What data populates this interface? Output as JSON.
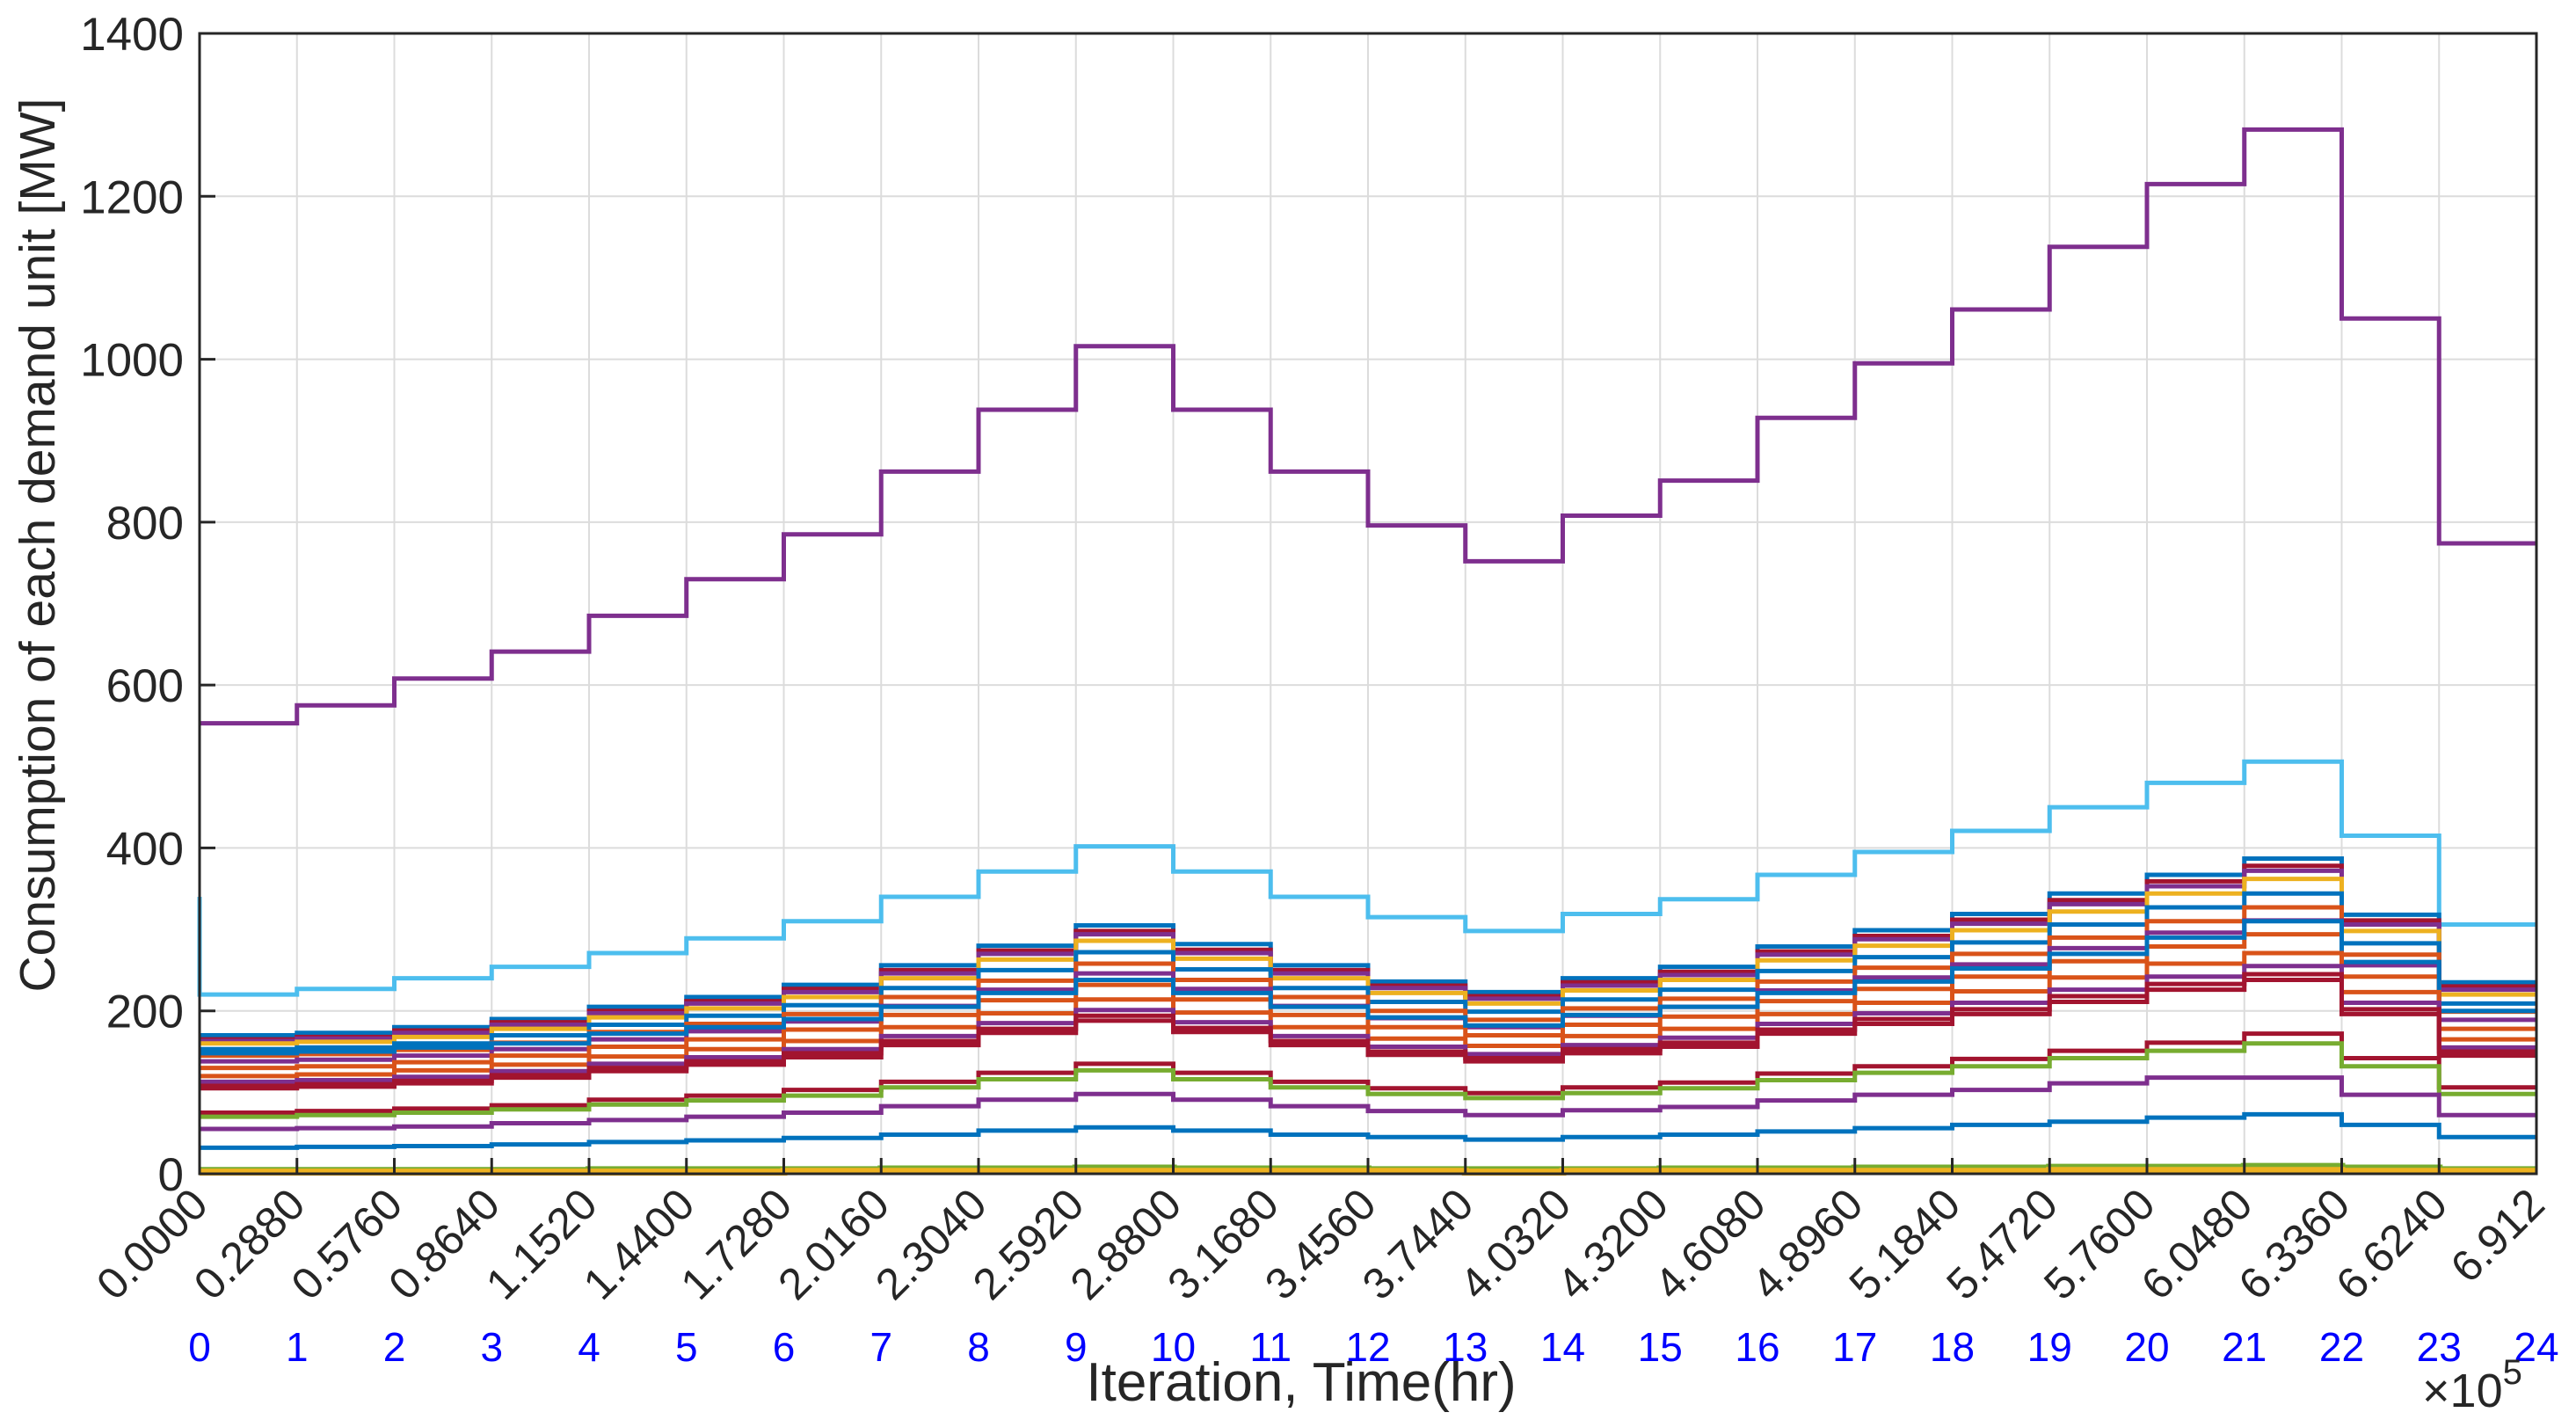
{
  "chart_data": {
    "type": "line",
    "xlabel": "Iteration, Time(hr)",
    "ylabel": "Consumption of each demand unit [MW]",
    "ylim": [
      0,
      1400
    ],
    "yticks": [
      0,
      200,
      400,
      600,
      800,
      1000,
      1200,
      1400
    ],
    "xlim": [
      0,
      24
    ],
    "x_exponent_label": "×10",
    "x_exponent_power": "5",
    "iteration_tick_labels": [
      "0.0000",
      "0.2880",
      "0.5760",
      "0.8640",
      "1.1520",
      "1.4400",
      "1.7280",
      "2.0160",
      "2.3040",
      "2.5920",
      "2.8800",
      "3.1680",
      "3.4560",
      "3.7440",
      "4.0320",
      "4.3200",
      "4.6080",
      "4.8960",
      "5.1840",
      "5.4720",
      "5.7600",
      "6.0480",
      "6.3360",
      "6.6240",
      "6.912"
    ],
    "hour_tick_labels": [
      "0",
      "1",
      "2",
      "3",
      "4",
      "5",
      "6",
      "7",
      "8",
      "9",
      "10",
      "11",
      "12",
      "13",
      "14",
      "15",
      "16",
      "17",
      "18",
      "19",
      "20",
      "21",
      "22",
      "23",
      "24"
    ],
    "hour_tick_color": "#0000ff",
    "grid": true,
    "step": true,
    "series": [
      {
        "color": "#7E2F8E",
        "values": [
          553,
          575,
          608,
          641,
          685,
          730,
          785,
          862,
          938,
          1016,
          938,
          862,
          796,
          752,
          808,
          851,
          928,
          995,
          1061,
          1138,
          1215,
          1282,
          1050,
          774
        ]
      },
      {
        "color": "#4DBEEE",
        "start": 340,
        "values": [
          220,
          227,
          240,
          254,
          271,
          289,
          310,
          340,
          371,
          402,
          371,
          340,
          315,
          298,
          319,
          337,
          367,
          395,
          421,
          450,
          480,
          506,
          415,
          306
        ]
      },
      {
        "color": "#0072BD",
        "values": [
          170,
          173,
          180,
          190,
          205,
          217,
          232,
          256,
          280,
          305,
          282,
          256,
          236,
          223,
          240,
          254,
          279,
          299,
          319,
          344,
          367,
          387,
          318,
          235
        ]
      },
      {
        "color": "#A2142F",
        "values": [
          165,
          168,
          176,
          186,
          200,
          212,
          227,
          250,
          274,
          298,
          275,
          250,
          231,
          218,
          235,
          248,
          273,
          292,
          312,
          336,
          359,
          378,
          311,
          230
        ]
      },
      {
        "color": "#7E2F8E",
        "values": [
          163,
          166,
          173,
          183,
          197,
          209,
          223,
          246,
          270,
          294,
          271,
          246,
          228,
          215,
          231,
          244,
          269,
          288,
          307,
          331,
          353,
          372,
          306,
          226
        ]
      },
      {
        "color": "#EDB120",
        "values": [
          160,
          162,
          168,
          178,
          192,
          203,
          217,
          240,
          263,
          286,
          264,
          240,
          222,
          209,
          225,
          238,
          262,
          280,
          299,
          322,
          344,
          362,
          298,
          220
        ]
      },
      {
        "color": "#0072BD",
        "values": [
          153,
          155,
          160,
          170,
          183,
          194,
          207,
          228,
          250,
          272,
          251,
          228,
          211,
          199,
          214,
          226,
          249,
          266,
          284,
          306,
          327,
          344,
          283,
          209
        ]
      },
      {
        "color": "#D95319",
        "values": [
          145,
          147,
          152,
          161,
          174,
          184,
          196,
          217,
          237,
          258,
          238,
          217,
          200,
          189,
          203,
          215,
          236,
          253,
          270,
          290,
          310,
          327,
          269,
          199
        ]
      },
      {
        "color": "#7E2F8E",
        "values": [
          138,
          140,
          145,
          153,
          165,
          175,
          187,
          206,
          226,
          246,
          227,
          206,
          191,
          180,
          194,
          205,
          225,
          241,
          257,
          277,
          296,
          311,
          256,
          189
        ]
      },
      {
        "color": "#D95319",
        "values": [
          130,
          132,
          137,
          145,
          156,
          165,
          177,
          195,
          213,
          232,
          214,
          195,
          180,
          170,
          183,
          193,
          212,
          227,
          242,
          261,
          279,
          294,
          242,
          178
        ]
      },
      {
        "color": "#0072BD",
        "values": [
          148,
          150,
          155,
          160,
          172,
          180,
          190,
          205,
          222,
          238,
          222,
          205,
          192,
          182,
          195,
          205,
          222,
          236,
          252,
          270,
          290,
          310,
          260,
          200
        ]
      },
      {
        "color": "#D95319",
        "values": [
          120,
          122,
          127,
          134,
          144,
          153,
          163,
          180,
          197,
          214,
          198,
          180,
          166,
          157,
          169,
          178,
          196,
          210,
          224,
          241,
          258,
          271,
          223,
          165
        ]
      },
      {
        "color": "#7E2F8E",
        "values": [
          113,
          115,
          119,
          126,
          135,
          143,
          153,
          169,
          185,
          201,
          186,
          169,
          156,
          147,
          158,
          167,
          184,
          197,
          210,
          226,
          242,
          255,
          210,
          155
        ]
      },
      {
        "color": "#A2142F",
        "values": [
          105,
          107,
          111,
          118,
          126,
          134,
          143,
          158,
          173,
          188,
          174,
          158,
          146,
          138,
          148,
          156,
          172,
          184,
          196,
          211,
          226,
          238,
          196,
          145
        ]
      },
      {
        "color": "#A2142F",
        "values": [
          108,
          110,
          114,
          121,
          130,
          138,
          148,
          163,
          178,
          194,
          179,
          163,
          150,
          142,
          153,
          161,
          177,
          190,
          202,
          218,
          233,
          245,
          202,
          150
        ]
      },
      {
        "color": "#A2142F",
        "values": [
          75,
          77,
          80,
          84,
          91,
          96,
          103,
          113,
          124,
          135,
          124,
          113,
          105,
          99,
          106,
          112,
          123,
          132,
          141,
          151,
          161,
          172,
          142,
          106
        ]
      },
      {
        "color": "#77AC30",
        "values": [
          70,
          72,
          75,
          79,
          85,
          90,
          96,
          106,
          116,
          127,
          116,
          106,
          98,
          93,
          99,
          105,
          115,
          124,
          132,
          142,
          151,
          160,
          132,
          98
        ]
      },
      {
        "color": "#7E2F8E",
        "values": [
          55,
          56,
          58,
          62,
          66,
          70,
          75,
          83,
          91,
          98,
          91,
          83,
          77,
          72,
          78,
          82,
          90,
          97,
          103,
          111,
          118,
          118,
          97,
          72
        ]
      },
      {
        "color": "#0072BD",
        "values": [
          32,
          33,
          34,
          36,
          39,
          41,
          44,
          48,
          53,
          57,
          53,
          48,
          45,
          42,
          45,
          48,
          52,
          56,
          60,
          64,
          69,
          73,
          60,
          45
        ]
      },
      {
        "color": "#77AC30",
        "values": [
          4,
          4,
          4,
          4,
          5,
          5,
          5,
          6,
          6,
          7,
          6,
          6,
          5,
          5,
          5,
          6,
          6,
          7,
          7,
          8,
          8,
          9,
          7,
          5
        ]
      },
      {
        "color": "#EDB120",
        "values": [
          2,
          2,
          2,
          2,
          2,
          2,
          3,
          3,
          3,
          3,
          3,
          3,
          3,
          2,
          3,
          3,
          3,
          3,
          3,
          4,
          4,
          4,
          3,
          3
        ]
      }
    ]
  }
}
